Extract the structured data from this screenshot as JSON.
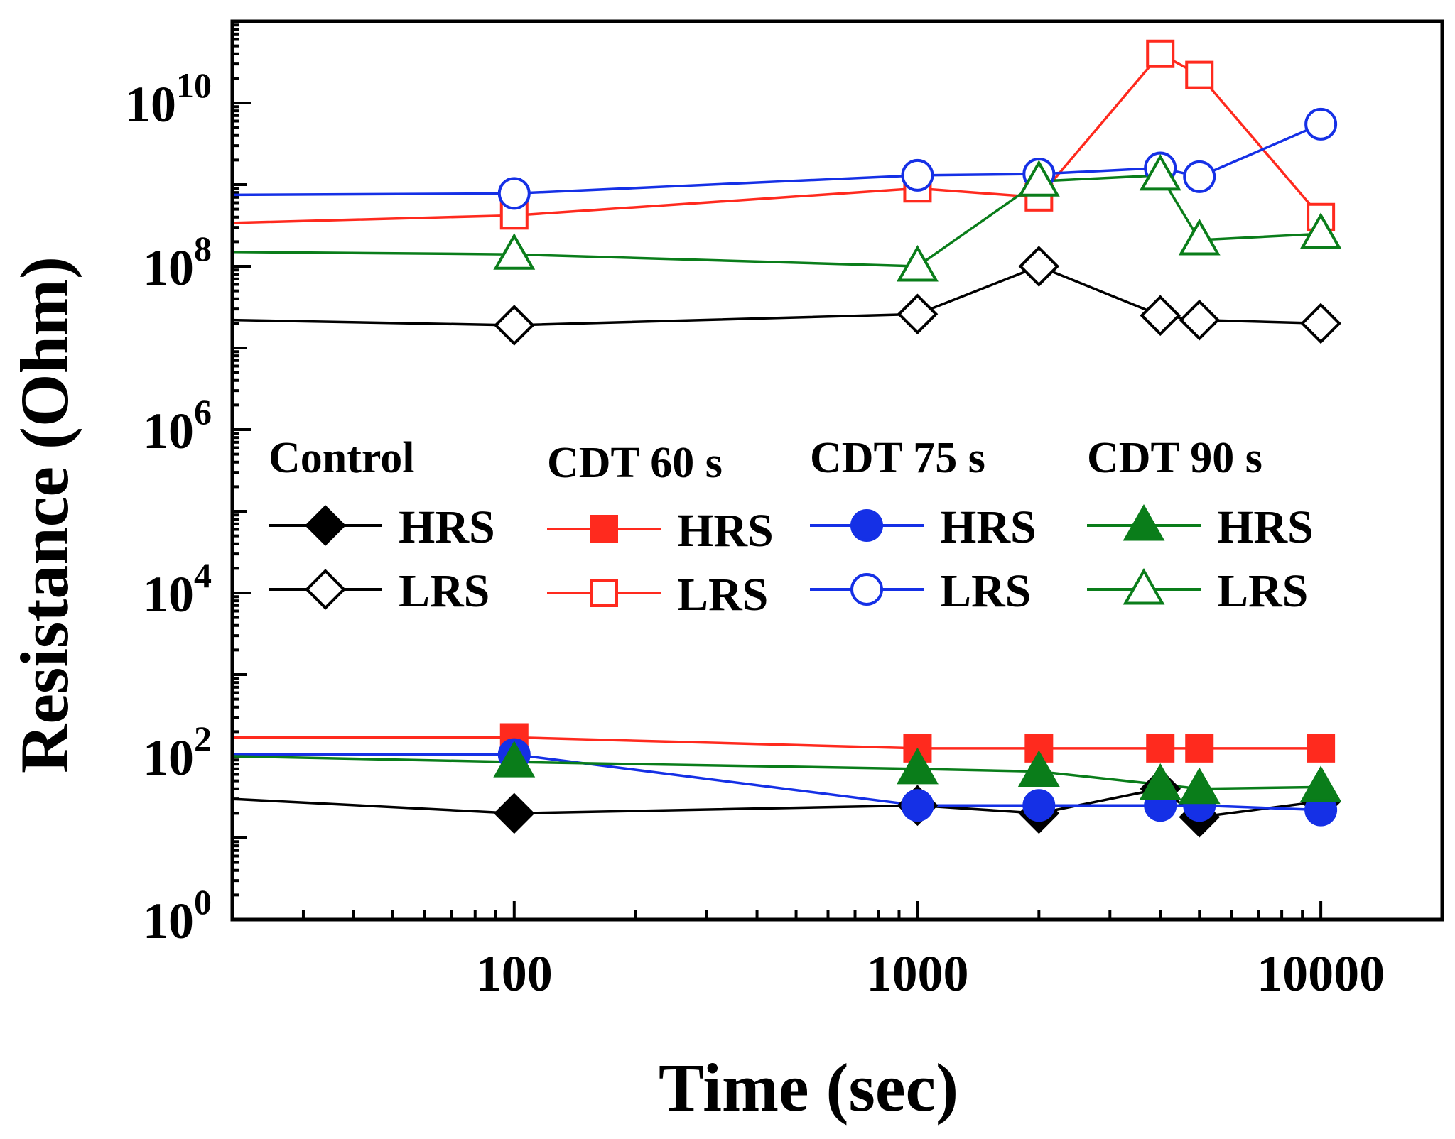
{
  "chart_data": {
    "type": "line",
    "xscale": "log",
    "yscale": "log",
    "xlabel": "Time (sec)",
    "ylabel": "Resistance (Ohm)",
    "xlim": [
      20,
      20000
    ],
    "ylim": [
      1,
      100000000000.0
    ],
    "x_ticks": [
      {
        "value": 100,
        "label": "100"
      },
      {
        "value": 1000,
        "label": "1000"
      },
      {
        "value": 10000,
        "label": "10000"
      }
    ],
    "y_ticks": [
      {
        "value": 1,
        "base": "10",
        "exp": "0"
      },
      {
        "value": 100,
        "base": "10",
        "exp": "2"
      },
      {
        "value": 10000,
        "base": "10",
        "exp": "4"
      },
      {
        "value": 1000000,
        "base": "10",
        "exp": "6"
      },
      {
        "value": 100000000,
        "base": "10",
        "exp": "8"
      },
      {
        "value": 10000000000,
        "base": "10",
        "exp": "10"
      }
    ],
    "groups": [
      {
        "title": "Control",
        "color": "#000000",
        "marker": "diamond"
      },
      {
        "title": "CDT 60 s",
        "color": "#ff2a1e",
        "marker": "square"
      },
      {
        "title": "CDT 75 s",
        "color": "#1530e6",
        "marker": "circle"
      },
      {
        "title": "CDT 90 s",
        "color": "#0a7d1a",
        "marker": "triangle"
      }
    ],
    "series": [
      {
        "name": "Control HRS",
        "group": 0,
        "filled": true,
        "legend_label": "HRS",
        "line_start": 30,
        "x": [
          100,
          1000,
          2000,
          4000,
          5000,
          10000
        ],
        "y": [
          20,
          25,
          20,
          40,
          18,
          28
        ]
      },
      {
        "name": "Control LRS",
        "group": 0,
        "filled": false,
        "legend_label": "LRS",
        "line_start": 22000000,
        "x": [
          100,
          1000,
          2000,
          4000,
          5000,
          10000
        ],
        "y": [
          19000000,
          26000000,
          100000000,
          25000000,
          22000000,
          20000000
        ]
      },
      {
        "name": "CDT 60 s HRS",
        "group": 1,
        "filled": true,
        "legend_label": "HRS",
        "line_start": 170,
        "x": [
          100,
          1000,
          2000,
          4000,
          5000,
          10000
        ],
        "y": [
          170,
          125,
          125,
          125,
          125,
          125
        ]
      },
      {
        "name": "CDT 60 s LRS",
        "group": 1,
        "filled": false,
        "legend_label": "LRS",
        "line_start": 340000000,
        "x": [
          100,
          1000,
          2000,
          4000,
          5000,
          10000
        ],
        "y": [
          420000000,
          900000000,
          700000000,
          40000000000,
          22000000000,
          400000000
        ]
      },
      {
        "name": "CDT 75 s HRS",
        "group": 2,
        "filled": true,
        "legend_label": "HRS",
        "line_start": 105,
        "x": [
          100,
          1000,
          2000,
          4000,
          5000,
          10000
        ],
        "y": [
          105,
          25,
          25,
          25,
          25,
          22
        ]
      },
      {
        "name": "CDT 75 s LRS",
        "group": 2,
        "filled": false,
        "legend_label": "LRS",
        "line_start": 750000000,
        "x": [
          100,
          1000,
          2000,
          4000,
          5000,
          10000
        ],
        "y": [
          780000000,
          1300000000,
          1350000000,
          1600000000,
          1250000000,
          5500000000
        ]
      },
      {
        "name": "CDT 90 s HRS",
        "group": 3,
        "filled": true,
        "legend_label": "HRS",
        "line_start": 100,
        "x": [
          100,
          1000,
          2000,
          4000,
          5000,
          10000
        ],
        "y": [
          85,
          70,
          65,
          45,
          40,
          42
        ]
      },
      {
        "name": "CDT 90 s LRS",
        "group": 3,
        "filled": false,
        "legend_label": "LRS",
        "line_start": 150000000,
        "x": [
          100,
          1000,
          2000,
          4000,
          5000,
          10000
        ],
        "y": [
          140000000,
          100000000,
          1100000000,
          1300000000,
          210000000,
          250000000
        ]
      }
    ]
  }
}
